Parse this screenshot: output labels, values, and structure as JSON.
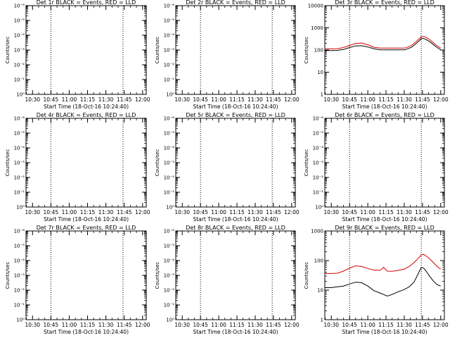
{
  "style": {
    "events_color": "#000000",
    "lld_color": "#d40000",
    "axis_color": "#000000"
  },
  "chart_data": [
    {
      "type": "line",
      "title": "Det 1r BLACK = Events, RED = LLD",
      "xlabel": "Start Time (18-Oct-16 10:24:40)",
      "ylabel": "Counts/sec",
      "xticks": [
        "10:30",
        "10:45",
        "11:00",
        "11:15",
        "11:30",
        "11:45",
        "12:00"
      ],
      "xlim": [
        "10:24:40",
        "12:03:00"
      ],
      "yscale": "log",
      "yticks": [
        "10⁰",
        "10⁻¹",
        "10⁻²",
        "10⁻³",
        "10⁻⁴",
        "10⁻⁵",
        "10⁻⁶"
      ],
      "ylim": [
        1e-06,
        1
      ],
      "vlines": [
        "10:45",
        "11:44"
      ],
      "series": []
    },
    {
      "type": "line",
      "title": "Det 2r BLACK = Events, RED = LLD",
      "xlabel": "Start Time (18-Oct-16 10:24:40)",
      "ylabel": "Counts/sec",
      "xticks": [
        "10:30",
        "10:45",
        "11:00",
        "11:15",
        "11:30",
        "11:45",
        "12:00"
      ],
      "xlim": [
        "10:24:40",
        "12:03:00"
      ],
      "yscale": "log",
      "yticks": [
        "10⁰",
        "10⁻¹",
        "10⁻²",
        "10⁻³",
        "10⁻⁴",
        "10⁻⁵",
        "10⁻⁶"
      ],
      "ylim": [
        1e-06,
        1
      ],
      "vlines": [
        "10:45",
        "11:44"
      ],
      "series": []
    },
    {
      "type": "line",
      "title": "Det 3r BLACK = Events, RED = LLD",
      "xlabel": "Start Time (18-Oct-16 10:24:40)",
      "ylabel": "Counts/sec",
      "xticks": [
        "10:30",
        "10:45",
        "11:00",
        "11:15",
        "11:30",
        "11:45",
        "12:00"
      ],
      "xlim": [
        "10:24:40",
        "12:03:00"
      ],
      "yscale": "log",
      "yticks": [
        "1",
        "10",
        "100",
        "1000",
        "10000"
      ],
      "ylim": [
        1,
        15000
      ],
      "vlines": [
        "10:45",
        "11:44"
      ],
      "series": [
        {
          "role": "lld",
          "x": [
            "10:24:40",
            "10:30",
            "10:35",
            "10:40",
            "10:45",
            "10:50",
            "10:55",
            "11:00",
            "11:05",
            "11:10",
            "11:15",
            "11:20",
            "11:25",
            "11:30",
            "11:33",
            "11:36",
            "11:39",
            "11:42",
            "11:44",
            "11:46",
            "11:48",
            "11:51",
            "11:54",
            "11:57",
            "12:00"
          ],
          "y": [
            140,
            140,
            142,
            160,
            200,
            250,
            260,
            215,
            165,
            150,
            150,
            150,
            150,
            150,
            170,
            200,
            280,
            400,
            520,
            540,
            480,
            370,
            270,
            195,
            150
          ]
        },
        {
          "role": "events",
          "x": [
            "10:24:40",
            "10:30",
            "10:35",
            "10:40",
            "10:45",
            "10:50",
            "10:55",
            "11:00",
            "11:05",
            "11:10",
            "11:15",
            "11:20",
            "11:25",
            "11:30",
            "11:33",
            "11:36",
            "11:39",
            "11:42",
            "11:44",
            "11:46",
            "11:48",
            "11:51",
            "11:54",
            "11:57",
            "12:00"
          ],
          "y": [
            115,
            115,
            118,
            130,
            160,
            190,
            195,
            170,
            140,
            125,
            125,
            125,
            125,
            125,
            140,
            165,
            225,
            320,
            420,
            430,
            380,
            300,
            220,
            160,
            125
          ]
        }
      ]
    },
    {
      "type": "line",
      "title": "Det 4r BLACK = Events, RED = LLD",
      "xlabel": "Start Time (18-Oct-16 10:24:40)",
      "ylabel": "Counts/sec",
      "xticks": [
        "10:30",
        "10:45",
        "11:00",
        "11:15",
        "11:30",
        "11:45",
        "12:00"
      ],
      "xlim": [
        "10:24:40",
        "12:03:00"
      ],
      "yscale": "log",
      "yticks": [
        "10⁰",
        "10⁻¹",
        "10⁻²",
        "10⁻³",
        "10⁻⁴",
        "10⁻⁵",
        "10⁻⁶"
      ],
      "ylim": [
        1e-06,
        1
      ],
      "vlines": [
        "10:45",
        "11:44"
      ],
      "series": []
    },
    {
      "type": "line",
      "title": "Det 5r BLACK = Events, RED = LLD",
      "xlabel": "Start Time (18-Oct-16 10:24:40)",
      "ylabel": "Counts/sec",
      "xticks": [
        "10:30",
        "10:45",
        "11:00",
        "11:15",
        "11:30",
        "11:45",
        "12:00"
      ],
      "xlim": [
        "10:24:40",
        "12:03:00"
      ],
      "yscale": "log",
      "yticks": [
        "10⁰",
        "10⁻¹",
        "10⁻²",
        "10⁻³",
        "10⁻⁴",
        "10⁻⁵",
        "10⁻⁶"
      ],
      "ylim": [
        1e-06,
        1
      ],
      "vlines": [
        "10:45",
        "11:44"
      ],
      "series": []
    },
    {
      "type": "line",
      "title": "Det 6r BLACK = Events, RED = LLD",
      "xlabel": "Start Time (18-Oct-16 10:24:40)",
      "ylabel": "Counts/sec",
      "xticks": [
        "10:30",
        "10:45",
        "11:00",
        "11:15",
        "11:30",
        "11:45",
        "12:00"
      ],
      "xlim": [
        "10:24:40",
        "12:03:00"
      ],
      "yscale": "log",
      "yticks": [
        "10⁰",
        "10⁻¹",
        "10⁻²",
        "10⁻³",
        "10⁻⁴",
        "10⁻⁵",
        "10⁻⁶"
      ],
      "ylim": [
        1e-06,
        1
      ],
      "vlines": [
        "10:45",
        "11:44"
      ],
      "series": []
    },
    {
      "type": "line",
      "title": "Det 7r BLACK = Events, RED = LLD",
      "xlabel": "Start Time (18-Oct-16 10:24:40)",
      "ylabel": "Counts/sec",
      "xticks": [
        "10:30",
        "10:45",
        "11:00",
        "11:15",
        "11:30",
        "11:45",
        "12:00"
      ],
      "xlim": [
        "10:24:40",
        "12:03:00"
      ],
      "yscale": "log",
      "yticks": [
        "10⁰",
        "10⁻¹",
        "10⁻²",
        "10⁻³",
        "10⁻⁴",
        "10⁻⁵",
        "10⁻⁶"
      ],
      "ylim": [
        1e-06,
        1
      ],
      "vlines": [
        "10:45",
        "11:44"
      ],
      "series": []
    },
    {
      "type": "line",
      "title": "Det 8r BLACK = Events, RED = LLD",
      "xlabel": "Start Time (18-Oct-16 10:24:40)",
      "ylabel": "Counts/sec",
      "xticks": [
        "10:30",
        "10:45",
        "11:00",
        "11:15",
        "11:30",
        "11:45",
        "12:00"
      ],
      "xlim": [
        "10:24:40",
        "12:03:00"
      ],
      "yscale": "log",
      "yticks": [
        "10⁰",
        "10⁻¹",
        "10⁻²",
        "10⁻³",
        "10⁻⁴",
        "10⁻⁵",
        "10⁻⁶"
      ],
      "ylim": [
        1e-06,
        1
      ],
      "vlines": [
        "10:45",
        "11:44"
      ],
      "series": []
    },
    {
      "type": "line",
      "title": "Det 9r BLACK = Events, RED = LLD",
      "xlabel": "Start Time (18-Oct-16 10:24:40)",
      "ylabel": "Counts/sec",
      "xticks": [
        "10:30",
        "10:45",
        "11:00",
        "11:15",
        "11:30",
        "11:45",
        "12:00"
      ],
      "xlim": [
        "10:24:40",
        "12:03:00"
      ],
      "yscale": "log",
      "yticks": [
        "1",
        "10",
        "100",
        "1000"
      ],
      "ylim": [
        1,
        1500
      ],
      "vlines": [
        "10:45",
        "11:44"
      ],
      "series": [
        {
          "role": "lld",
          "x": [
            "10:24:40",
            "10:30",
            "10:35",
            "10:40",
            "10:45",
            "10:50",
            "10:55",
            "11:00",
            "11:05",
            "11:10",
            "11:13",
            "11:16",
            "11:20",
            "11:25",
            "11:30",
            "11:34",
            "11:38",
            "11:41",
            "11:44",
            "11:46",
            "11:48",
            "11:51",
            "11:54",
            "11:57",
            "12:00"
          ],
          "y": [
            45,
            45,
            46,
            55,
            70,
            85,
            80,
            68,
            60,
            58,
            75,
            55,
            54,
            58,
            65,
            80,
            110,
            150,
            210,
            220,
            190,
            150,
            110,
            80,
            65
          ]
        },
        {
          "role": "events",
          "x": [
            "10:24:40",
            "10:30",
            "10:35",
            "10:40",
            "10:45",
            "10:50",
            "10:55",
            "11:00",
            "11:05",
            "11:10",
            "11:13",
            "11:16",
            "11:20",
            "11:25",
            "11:30",
            "11:34",
            "11:38",
            "11:41",
            "11:44",
            "11:46",
            "11:48",
            "11:51",
            "11:54",
            "11:57",
            "12:00"
          ],
          "y": [
            14,
            14,
            15,
            16,
            19,
            22,
            21,
            16,
            11,
            9,
            8,
            7,
            8,
            10,
            12,
            15,
            22,
            40,
            75,
            70,
            55,
            35,
            24,
            18,
            16
          ]
        }
      ]
    }
  ]
}
